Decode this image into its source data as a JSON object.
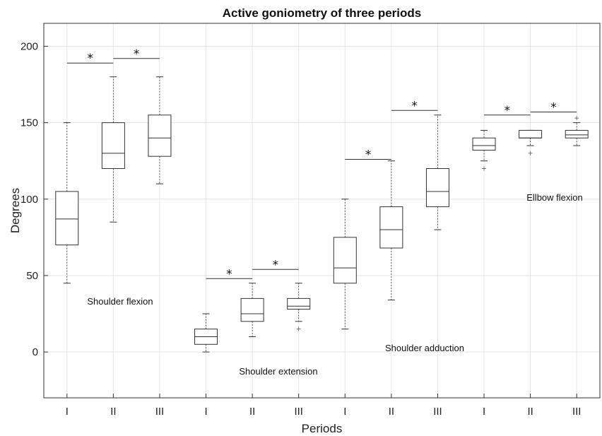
{
  "chart_data": {
    "type": "box",
    "title": "Active goniometry of three periods",
    "xlabel": "Periods",
    "ylabel": "Degrees",
    "ylim": [
      -30,
      215
    ],
    "yticks": [
      0,
      50,
      100,
      150,
      200
    ],
    "grid": true,
    "categories": [
      "I",
      "II",
      "III",
      "I",
      "II",
      "III",
      "I",
      "II",
      "III",
      "I",
      "II",
      "III"
    ],
    "groups": [
      {
        "name": "Shoulder flexion",
        "boxes": [
          {
            "period": "I",
            "min": 45,
            "q1": 70,
            "median": 87,
            "q3": 105,
            "max": 150,
            "outliers": []
          },
          {
            "period": "II",
            "min": 85,
            "q1": 120,
            "median": 130,
            "q3": 150,
            "max": 180,
            "outliers": []
          },
          {
            "period": "III",
            "min": 110,
            "q1": 128,
            "median": 140,
            "q3": 155,
            "max": 180,
            "outliers": []
          }
        ]
      },
      {
        "name": "Shoulder extension",
        "boxes": [
          {
            "period": "I",
            "min": 0,
            "q1": 5,
            "median": 10,
            "q3": 15,
            "max": 25,
            "outliers": []
          },
          {
            "period": "II",
            "min": 10,
            "q1": 20,
            "median": 25,
            "q3": 35,
            "max": 45,
            "outliers": []
          },
          {
            "period": "III",
            "min": 20,
            "q1": 28,
            "median": 30,
            "q3": 35,
            "max": 45,
            "outliers": [
              15
            ]
          }
        ]
      },
      {
        "name": "Shoulder adduction",
        "boxes": [
          {
            "period": "I",
            "min": 15,
            "q1": 45,
            "median": 55,
            "q3": 75,
            "max": 100,
            "outliers": []
          },
          {
            "period": "II",
            "min": 34,
            "q1": 68,
            "median": 80,
            "q3": 95,
            "max": 125,
            "outliers": []
          },
          {
            "period": "III",
            "min": 80,
            "q1": 95,
            "median": 105,
            "q3": 120,
            "max": 155,
            "outliers": []
          }
        ]
      },
      {
        "name": "Ellbow flexion",
        "boxes": [
          {
            "period": "I",
            "min": 125,
            "q1": 132,
            "median": 135,
            "q3": 140,
            "max": 145,
            "outliers": [
              120
            ]
          },
          {
            "period": "II",
            "min": 135,
            "q1": 140,
            "median": 140,
            "q3": 145,
            "max": 145,
            "outliers": [
              130
            ]
          },
          {
            "period": "III",
            "min": 135,
            "q1": 140,
            "median": 142,
            "q3": 145,
            "max": 150,
            "outliers": [
              153
            ]
          }
        ]
      }
    ],
    "significance": [
      {
        "from": 1,
        "to": 2,
        "y": 189,
        "mark": "*"
      },
      {
        "from": 2,
        "to": 3,
        "y": 192,
        "mark": "*"
      },
      {
        "from": 4,
        "to": 5,
        "y": 48,
        "mark": "*"
      },
      {
        "from": 5,
        "to": 6,
        "y": 54,
        "mark": "*"
      },
      {
        "from": 7,
        "to": 8,
        "y": 126,
        "mark": "*"
      },
      {
        "from": 8,
        "to": 9,
        "y": 158,
        "mark": "*"
      },
      {
        "from": 10,
        "to": 11,
        "y": 155,
        "mark": "*"
      },
      {
        "from": 11,
        "to": 12,
        "y": 157,
        "mark": "*"
      }
    ]
  }
}
